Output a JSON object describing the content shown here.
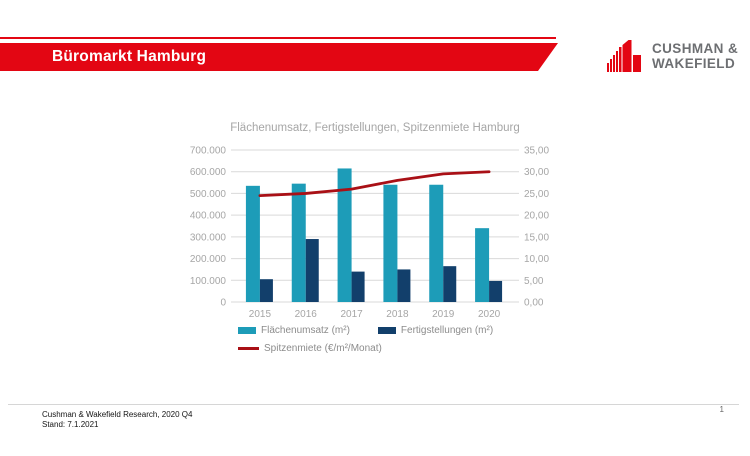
{
  "header": {
    "title": "Büromarkt Hamburg",
    "accent_color": "#e30613",
    "logo": {
      "icon": "cw-skyline-icon",
      "icon_color": "#e30613",
      "line1": "CUSHMAN &",
      "line2": "WAKEFIELD",
      "text_color": "#6d6f72"
    }
  },
  "chart_data": {
    "type": "bar+line",
    "title": "Flächenumsatz, Fertigstellungen, Spitzenmiete Hamburg",
    "categories": [
      "2015",
      "2016",
      "2017",
      "2018",
      "2019",
      "2020"
    ],
    "series": [
      {
        "name": "Flächenumsatz (m²)",
        "type": "bar",
        "axis": "left",
        "color": "#1d9cb8",
        "values": [
          535000,
          545000,
          615000,
          540000,
          540000,
          340000
        ]
      },
      {
        "name": "Fertigstellungen (m²)",
        "type": "bar",
        "axis": "left",
        "color": "#123f6b",
        "values": [
          105000,
          290000,
          140000,
          150000,
          165000,
          97000
        ]
      },
      {
        "name": "Spitzenmiete (€/m²/Monat)",
        "type": "line",
        "axis": "right",
        "color": "#a91016",
        "values": [
          24.5,
          25.0,
          26.0,
          28.0,
          29.5,
          30.0
        ]
      }
    ],
    "left_axis": {
      "min": 0,
      "max": 700000,
      "step": 100000,
      "tick_labels": [
        "0",
        "100.000",
        "200.000",
        "300.000",
        "400.000",
        "500.000",
        "600.000",
        "700.000"
      ]
    },
    "right_axis": {
      "min": 0,
      "max": 35,
      "step": 5,
      "tick_labels": [
        "0,00",
        "5,00",
        "10,00",
        "15,00",
        "20,00",
        "25,00",
        "30,00",
        "35,00"
      ]
    },
    "grid": true,
    "grid_color": "#d9d9d9",
    "text_color": "#a6a6a6",
    "legend_position": "bottom"
  },
  "footer": {
    "source_line1": "Cushman & Wakefield Research, 2020 Q4",
    "source_line2": "Stand: 7.1.2021",
    "page_number": "1"
  }
}
